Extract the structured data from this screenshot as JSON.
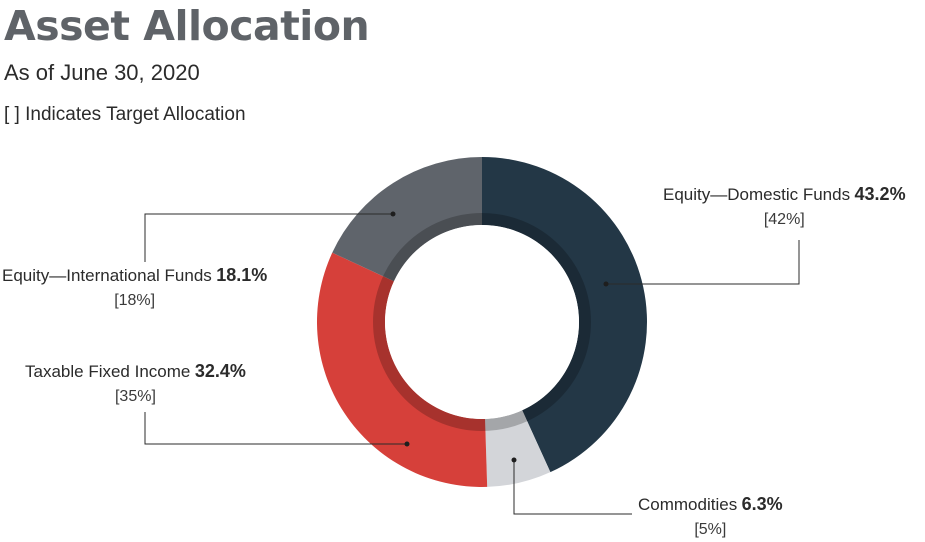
{
  "header": {
    "title": "Asset Allocation",
    "subtitle": "As of June 30, 2020",
    "note": "[ ] Indicates Target Allocation"
  },
  "chart_data": {
    "type": "pie",
    "donut": true,
    "series": [
      {
        "name": "Equity—Domestic Funds",
        "value": 43.2,
        "value_label": "43.2%",
        "target": "[42%]",
        "color": "#233746"
      },
      {
        "name": "Commodities",
        "value": 6.3,
        "value_label": "6.3%",
        "target": "[5%]",
        "color": "#d3d5d9"
      },
      {
        "name": "Taxable Fixed Income",
        "value": 32.4,
        "value_label": "32.4%",
        "target": "[35%]",
        "color": "#d6403a"
      },
      {
        "name": "Equity—International Funds",
        "value": 18.1,
        "value_label": "18.1%",
        "target": "[18%]",
        "color": "#5f646b"
      }
    ]
  }
}
